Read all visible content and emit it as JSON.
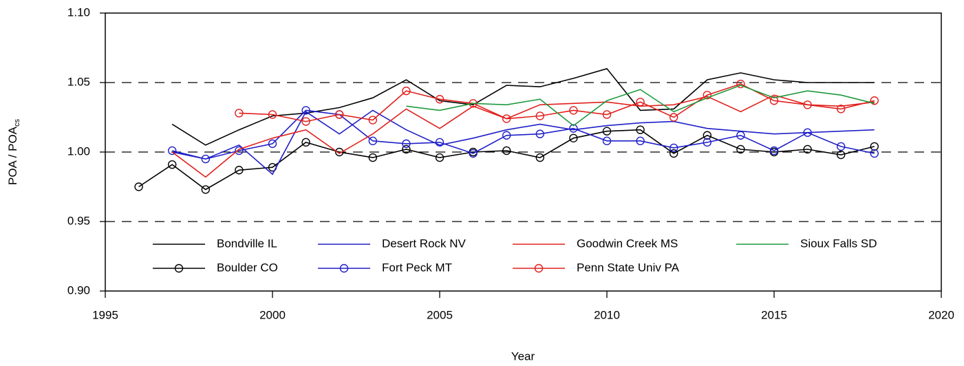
{
  "chart_data": {
    "type": "line",
    "xlabel": "Year",
    "ylabel": "POA / POA",
    "ylabel_subscript": "cs",
    "xlim": [
      1995,
      2020
    ],
    "ylim": [
      0.9,
      1.1
    ],
    "xticks": [
      1995,
      2000,
      2005,
      2010,
      2015,
      2020
    ],
    "yticks": [
      {
        "value": 0.9,
        "label": "0.90"
      },
      0.95,
      {
        "value": 1.0,
        "label": "1.00"
      },
      1.05,
      {
        "value": 1.1,
        "label": "1.10"
      }
    ],
    "grid_lines": [
      0.95,
      1.0,
      1.05
    ],
    "series": [
      {
        "name": "Bondville IL",
        "color": "#000000",
        "marker": "none",
        "x": [
          1997,
          1998,
          1999,
          2000,
          2001,
          2002,
          2003,
          2004,
          2005,
          2006,
          2007,
          2008,
          2009,
          2010,
          2011,
          2012,
          2013,
          2014,
          2015,
          2016,
          2017,
          2018
        ],
        "values": [
          1.02,
          1.005,
          1.016,
          1.026,
          1.028,
          1.032,
          1.039,
          1.052,
          1.037,
          1.034,
          1.048,
          1.047,
          1.053,
          1.06,
          1.03,
          1.031,
          1.052,
          1.057,
          1.052,
          1.05,
          1.05,
          1.05
        ]
      },
      {
        "name": "Boulder CO",
        "color": "#000000",
        "marker": "circle",
        "x": [
          1996,
          1997,
          1998,
          1999,
          2000,
          2001,
          2002,
          2003,
          2004,
          2005,
          2006,
          2007,
          2008,
          2009,
          2010,
          2011,
          2012,
          2013,
          2014,
          2015,
          2016,
          2017,
          2018
        ],
        "values": [
          0.975,
          0.991,
          0.973,
          0.987,
          0.989,
          1.007,
          1.0,
          0.996,
          1.002,
          0.996,
          1.0,
          1.001,
          0.996,
          1.01,
          1.015,
          1.016,
          0.999,
          1.012,
          1.002,
          1.0,
          1.002,
          0.998,
          1.004
        ]
      },
      {
        "name": "Desert Rock NV",
        "color": "#1f1fc8",
        "marker": "none",
        "x": [
          1997,
          1998,
          1999,
          2000,
          2001,
          2002,
          2003,
          2004,
          2005,
          2006,
          2007,
          2008,
          2009,
          2010,
          2011,
          2012,
          2013,
          2014,
          2015,
          2016,
          2017,
          2018
        ],
        "values": [
          1.0,
          0.995,
          1.005,
          0.984,
          1.029,
          1.013,
          1.03,
          1.016,
          1.005,
          1.01,
          1.016,
          1.02,
          1.016,
          1.019,
          1.021,
          1.022,
          1.017,
          1.015,
          1.013,
          1.014,
          1.015,
          1.016
        ]
      },
      {
        "name": "Fort Peck MT",
        "color": "#1f1fc8",
        "marker": "circle",
        "x": [
          1997,
          1998,
          1999,
          2000,
          2001,
          2002,
          2003,
          2004,
          2005,
          2006,
          2007,
          2008,
          2009,
          2010,
          2011,
          2012,
          2013,
          2014,
          2015,
          2016,
          2017,
          2018
        ],
        "values": [
          1.001,
          0.995,
          1.001,
          1.006,
          1.03,
          1.027,
          1.008,
          1.006,
          1.007,
          0.999,
          1.012,
          1.013,
          1.017,
          1.008,
          1.008,
          1.003,
          1.007,
          1.012,
          1.001,
          1.014,
          1.004,
          0.999
        ]
      },
      {
        "name": "Goodwin Creek MS",
        "color": "#e0201c",
        "marker": "none",
        "x": [
          1997,
          1998,
          1999,
          2000,
          2001,
          2002,
          2003,
          2004,
          2005,
          2006,
          2007,
          2008,
          2009,
          2010,
          2011,
          2012,
          2013,
          2014,
          2015,
          2016,
          2017,
          2018
        ],
        "values": [
          1.0,
          0.982,
          1.002,
          1.01,
          1.016,
          0.999,
          1.013,
          1.031,
          1.017,
          1.033,
          1.024,
          1.034,
          1.035,
          1.036,
          1.033,
          1.034,
          1.04,
          1.029,
          1.041,
          1.034,
          1.033,
          1.036
        ]
      },
      {
        "name": "Penn State Univ PA",
        "color": "#e0201c",
        "marker": "circle",
        "x": [
          1999,
          2000,
          2001,
          2002,
          2003,
          2004,
          2005,
          2006,
          2007,
          2008,
          2009,
          2010,
          2011,
          2012,
          2013,
          2014,
          2015,
          2016,
          2017,
          2018
        ],
        "values": [
          1.028,
          1.027,
          1.022,
          1.027,
          1.023,
          1.044,
          1.038,
          1.035,
          1.024,
          1.026,
          1.03,
          1.027,
          1.036,
          1.025,
          1.041,
          1.049,
          1.037,
          1.034,
          1.031,
          1.037
        ]
      },
      {
        "name": "Sioux Falls SD",
        "color": "#1e9a3c",
        "marker": "none",
        "x": [
          2004,
          2005,
          2006,
          2007,
          2008,
          2009,
          2010,
          2011,
          2012,
          2013,
          2014,
          2015,
          2016,
          2017,
          2018
        ],
        "values": [
          1.033,
          1.03,
          1.035,
          1.034,
          1.038,
          1.019,
          1.037,
          1.045,
          1.029,
          1.039,
          1.048,
          1.039,
          1.044,
          1.041,
          1.035
        ]
      }
    ]
  }
}
